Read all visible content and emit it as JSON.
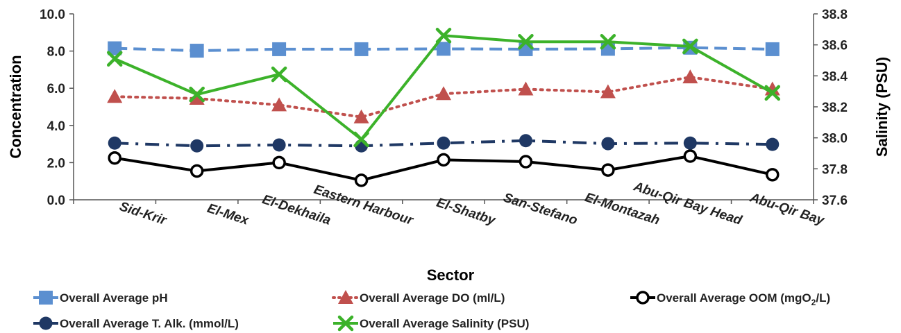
{
  "chart_data": {
    "type": "line",
    "title": "",
    "xlabel": "Sector",
    "ylabel": "Concentration",
    "y2label": "Salinity (PSU)",
    "ylim": [
      0,
      10
    ],
    "y2lim": [
      37.6,
      38.8
    ],
    "yticks": [
      "0.0",
      "2.0",
      "4.0",
      "6.0",
      "8.0",
      "10.0"
    ],
    "y2ticks": [
      "37.6",
      "37.8",
      "38.0",
      "38.2",
      "38.4",
      "38.6",
      "38.8"
    ],
    "categories": [
      "Sid-Krir",
      "El-Mex",
      "El-Dekhaila",
      "Eastern Harbour",
      "El-Shatby",
      "San-Stefano",
      "El-Montazah",
      "Abu-Qir Bay Head",
      "Abu-Qir Bay"
    ],
    "grid": false,
    "legend_position": "bottom",
    "series": [
      {
        "name": "Overall Average pH",
        "axis": "left",
        "color": "#5b8fd0",
        "style": "dashed",
        "marker": "square",
        "values": [
          8.15,
          8.02,
          8.1,
          8.1,
          8.12,
          8.1,
          8.12,
          8.18,
          8.1
        ]
      },
      {
        "name": "Overall Average DO (ml/L)",
        "axis": "left",
        "color": "#c0504d",
        "style": "dotted",
        "marker": "triangle",
        "values": [
          5.55,
          5.45,
          5.1,
          4.45,
          5.7,
          5.95,
          5.8,
          6.6,
          5.95
        ]
      },
      {
        "name": "Overall Average OOM (mgO2/L)",
        "label_main": "Overall Average OOM (mgO",
        "label_sub": "2",
        "label_end": "/L)",
        "axis": "left",
        "color": "#000000",
        "style": "solid",
        "marker": "circle-open",
        "values": [
          2.25,
          1.55,
          2.0,
          1.05,
          2.15,
          2.05,
          1.6,
          2.35,
          1.35
        ]
      },
      {
        "name": "Overall Average T. Alk. (mmol/L)",
        "axis": "left",
        "color": "#1f3864",
        "style": "dashdot",
        "marker": "circle",
        "values": [
          3.05,
          2.9,
          2.95,
          2.9,
          3.05,
          3.18,
          3.02,
          3.05,
          2.98
        ]
      },
      {
        "name": "Overall Average Salinity (PSU)",
        "axis": "right",
        "color": "#3cb22a",
        "style": "solid",
        "marker": "x",
        "values": [
          38.51,
          38.28,
          38.41,
          37.99,
          38.66,
          38.62,
          38.62,
          38.59,
          38.29
        ]
      }
    ]
  }
}
